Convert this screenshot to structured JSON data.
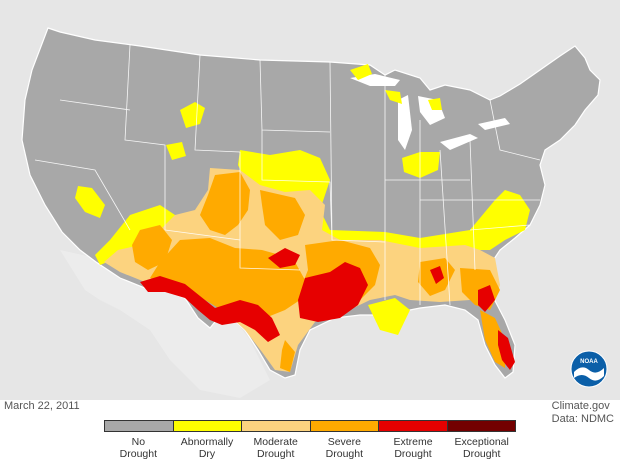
{
  "date": "March 22, 2011",
  "credit": {
    "line1": "Climate.gov",
    "line2": "Data: NDMC"
  },
  "logo_text": "NOAA",
  "legend": [
    {
      "line1": "No",
      "line2": "Drought",
      "color": "#a8a8a8"
    },
    {
      "line1": "Abnormally",
      "line2": "Dry",
      "color": "#ffff00"
    },
    {
      "line1": "Moderate",
      "line2": "Drought",
      "color": "#fcd37f"
    },
    {
      "line1": "Severe",
      "line2": "Drought",
      "color": "#ffaa00"
    },
    {
      "line1": "Extreme",
      "line2": "Drought",
      "color": "#e60000"
    },
    {
      "line1": "Exceptional",
      "line2": "Drought",
      "color": "#730000"
    }
  ],
  "colors": {
    "background_land": "#e6e6e6",
    "water": "#ffffff",
    "no_drought": "#a8a8a8",
    "abnormally_dry": "#ffff00",
    "moderate": "#fcd37f",
    "severe": "#ffaa00",
    "extreme": "#e60000",
    "noaa_blue": "#0b5fa8"
  }
}
